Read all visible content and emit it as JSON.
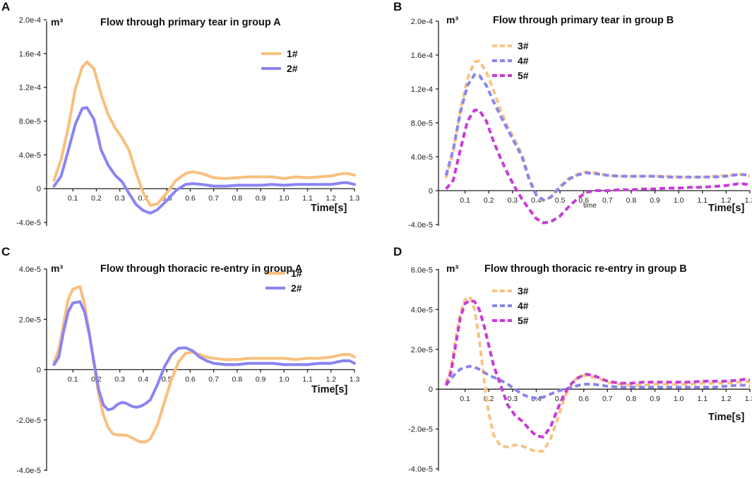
{
  "colors": {
    "s1": "#f9bf7d",
    "s2": "#8a84f2",
    "s3": "#f7c383",
    "s4": "#8a84ef",
    "s5": "#c73ad8",
    "axis": "#222222"
  },
  "chart_data": [
    {
      "panel": "A",
      "type": "line",
      "title": "Flow through primary tear in group A",
      "ylabel": "m³",
      "xlabel": "Time[s]",
      "ylim": [
        -5.5e-05,
        0.0002
      ],
      "xlim": [
        0,
        1.3
      ],
      "yticks": [
        -4e-05,
        0,
        4e-05,
        8e-05,
        0.00012,
        0.00016,
        0.0002
      ],
      "ytick_labels": [
        "-4.0e-5",
        "0",
        "4.0e-5",
        "8.0e-5",
        "1.2e-4",
        "1.6e-4",
        "2.0e-4"
      ],
      "xticks": [
        "0.1",
        "0.2",
        "0.3",
        "0.4",
        "0.5",
        "0.6",
        "0.7",
        "0.8",
        "0.9",
        "1.0",
        "1.1",
        "1.2",
        "1.3"
      ],
      "legend_position": "top-right",
      "series": [
        {
          "name": "1#",
          "style": "solid",
          "color_key": "s1",
          "x": [
            0.02,
            0.05,
            0.08,
            0.11,
            0.14,
            0.16,
            0.19,
            0.22,
            0.25,
            0.28,
            0.31,
            0.34,
            0.37,
            0.4,
            0.43,
            0.46,
            0.5,
            0.54,
            0.58,
            0.61,
            0.65,
            0.7,
            0.75,
            0.8,
            0.85,
            0.9,
            0.95,
            1.0,
            1.05,
            1.1,
            1.15,
            1.2,
            1.25,
            1.27,
            1.3
          ],
          "y": [
            1e-05,
            3.5e-05,
            7.2e-05,
            0.000118,
            0.000144,
            0.00015,
            0.000142,
            0.000112,
            8.8e-05,
            7.2e-05,
            6e-05,
            4.5e-05,
            1.8e-05,
            -5e-06,
            -2e-05,
            -1.8e-05,
            -5e-06,
            1e-05,
            1.8e-05,
            2e-05,
            1.8e-05,
            1.3e-05,
            1.2e-05,
            1.3e-05,
            1.4e-05,
            1.4e-05,
            1.4e-05,
            1.2e-05,
            1.4e-05,
            1.3e-05,
            1.4e-05,
            1.5e-05,
            1.8e-05,
            1.8e-05,
            1.6e-05
          ]
        },
        {
          "name": "2#",
          "style": "solid",
          "color_key": "s2",
          "x": [
            0.02,
            0.05,
            0.08,
            0.11,
            0.14,
            0.16,
            0.19,
            0.22,
            0.25,
            0.28,
            0.31,
            0.34,
            0.37,
            0.4,
            0.43,
            0.46,
            0.5,
            0.54,
            0.58,
            0.61,
            0.65,
            0.7,
            0.75,
            0.8,
            0.85,
            0.9,
            0.95,
            1.0,
            1.05,
            1.1,
            1.15,
            1.2,
            1.25,
            1.27,
            1.3
          ],
          "y": [
            3e-06,
            1.5e-05,
            4.5e-05,
            7.6e-05,
            9.5e-05,
            9.6e-05,
            8.2e-05,
            4.6e-05,
            2.8e-05,
            1.6e-05,
            8e-06,
            -6e-06,
            -1.9e-05,
            -2.6e-05,
            -2.9e-05,
            -2.5e-05,
            -1.4e-05,
            -2e-06,
            5e-06,
            6e-06,
            5e-06,
            3e-06,
            3e-06,
            4e-06,
            4e-06,
            4e-06,
            5e-06,
            4e-06,
            5e-06,
            5e-06,
            5e-06,
            5e-06,
            7e-06,
            7e-06,
            5e-06
          ]
        }
      ]
    },
    {
      "panel": "B",
      "type": "line",
      "title": "Flow through primary tear in group B",
      "ylabel": "m³",
      "xlabel": "Time[s]",
      "annotation": "time",
      "ylim": [
        -5.5e-05,
        0.0002
      ],
      "xlim": [
        0,
        1.3
      ],
      "yticks": [
        -4e-05,
        0,
        4e-05,
        8e-05,
        0.00012,
        0.00016,
        0.0002
      ],
      "ytick_labels": [
        "-4.0e-5",
        "0",
        "4.0e-5",
        "8.0e-5",
        "1.2e-4",
        "1.6e-4",
        "2.0e-4"
      ],
      "xticks": [
        "0.1",
        "0.2",
        "0.3",
        "0.4",
        "0.5",
        "0.6",
        "0.7",
        "0.8",
        "0.9",
        "1.0",
        "1.1",
        "1.2",
        "1.3"
      ],
      "legend_position": "top-right",
      "series": [
        {
          "name": "3#",
          "style": "dashed",
          "color_key": "s3",
          "x": [
            0.02,
            0.05,
            0.08,
            0.11,
            0.14,
            0.16,
            0.19,
            0.22,
            0.25,
            0.28,
            0.31,
            0.34,
            0.37,
            0.4,
            0.43,
            0.46,
            0.5,
            0.54,
            0.58,
            0.61,
            0.65,
            0.7,
            0.75,
            0.8,
            0.85,
            0.9,
            0.95,
            1.0,
            1.05,
            1.1,
            1.15,
            1.2,
            1.25,
            1.27,
            1.3
          ],
          "y": [
            1.5e-05,
            4.5e-05,
            9.5e-05,
            0.000132,
            0.000152,
            0.000153,
            0.00014,
            0.000118,
            9.5e-05,
            7.5e-05,
            6e-05,
            4.3e-05,
            1.5e-05,
            -6e-06,
            -1.2e-05,
            -8e-06,
            5e-06,
            1.5e-05,
            2e-05,
            2.2e-05,
            2.1e-05,
            1.8e-05,
            1.7e-05,
            1.7e-05,
            1.7e-05,
            1.7e-05,
            1.7e-05,
            1.6e-05,
            1.6e-05,
            1.6e-05,
            1.7e-05,
            1.8e-05,
            1.9e-05,
            1.9e-05,
            1.7e-05
          ]
        },
        {
          "name": "4#",
          "style": "dashed",
          "color_key": "s4",
          "x": [
            0.02,
            0.05,
            0.08,
            0.11,
            0.14,
            0.16,
            0.19,
            0.22,
            0.25,
            0.28,
            0.31,
            0.34,
            0.37,
            0.4,
            0.43,
            0.46,
            0.5,
            0.54,
            0.58,
            0.61,
            0.65,
            0.7,
            0.75,
            0.8,
            0.85,
            0.9,
            0.95,
            1.0,
            1.05,
            1.1,
            1.15,
            1.2,
            1.25,
            1.27,
            1.3
          ],
          "y": [
            1.8e-05,
            4.8e-05,
            9.2e-05,
            0.000124,
            0.000137,
            0.000136,
            0.000124,
            0.000105,
            8.8e-05,
            7.2e-05,
            5.6e-05,
            4e-05,
            1.3e-05,
            -5e-06,
            -1.1e-05,
            -8e-06,
            4e-06,
            1.4e-05,
            1.9e-05,
            2.1e-05,
            2e-05,
            1.8e-05,
            1.7e-05,
            1.7e-05,
            1.7e-05,
            1.7e-05,
            1.6e-05,
            1.6e-05,
            1.6e-05,
            1.6e-05,
            1.6e-05,
            1.7e-05,
            1.9e-05,
            1.9e-05,
            1.8e-05
          ]
        },
        {
          "name": "5#",
          "style": "dashed",
          "color_key": "s5",
          "x": [
            0.02,
            0.05,
            0.08,
            0.11,
            0.14,
            0.16,
            0.19,
            0.22,
            0.25,
            0.28,
            0.31,
            0.34,
            0.37,
            0.4,
            0.43,
            0.46,
            0.5,
            0.54,
            0.58,
            0.61,
            0.65,
            0.7,
            0.75,
            0.8,
            0.85,
            0.9,
            0.95,
            1.0,
            1.05,
            1.1,
            1.15,
            1.2,
            1.25,
            1.27,
            1.3
          ],
          "y": [
            2e-06,
            1.2e-05,
            4.8e-05,
            8.2e-05,
            9.5e-05,
            9.5e-05,
            8.2e-05,
            5.8e-05,
            3.8e-05,
            2e-05,
            4e-06,
            -1e-05,
            -2.2e-05,
            -3.3e-05,
            -3.8e-05,
            -3.7e-05,
            -3e-05,
            -1.8e-05,
            -8e-06,
            -2e-06,
            0.0,
            0.0,
            1e-06,
            1e-06,
            2e-06,
            2e-06,
            3e-06,
            3e-06,
            4e-06,
            4e-06,
            5e-06,
            6e-06,
            8e-06,
            8e-06,
            7e-06
          ]
        }
      ]
    },
    {
      "panel": "C",
      "type": "line",
      "title": "Flow through thoracic re-entry in group A",
      "ylabel": "m³",
      "xlabel": "Time[s]",
      "ylim": [
        -4e-05,
        4e-05
      ],
      "xlim": [
        0,
        1.3
      ],
      "yticks": [
        -4e-05,
        -2e-05,
        0,
        2e-05,
        4e-05
      ],
      "ytick_labels": [
        "-4.0e-5",
        "-2.0e-5",
        "0",
        "2.0e-5",
        "4.0e-5"
      ],
      "xticks": [
        "0.1",
        "0.2",
        "0.3",
        "0.4",
        "0.5",
        "0.6",
        "0.7",
        "0.8",
        "0.9",
        "1.0",
        "1.1",
        "1.2",
        "1.3"
      ],
      "legend_position": "top-right",
      "series": [
        {
          "name": "1#",
          "style": "solid",
          "color_key": "s1",
          "x": [
            0.02,
            0.04,
            0.06,
            0.08,
            0.1,
            0.13,
            0.15,
            0.17,
            0.19,
            0.21,
            0.23,
            0.25,
            0.27,
            0.29,
            0.31,
            0.33,
            0.35,
            0.37,
            0.39,
            0.41,
            0.43,
            0.46,
            0.49,
            0.52,
            0.55,
            0.58,
            0.61,
            0.64,
            0.67,
            0.7,
            0.75,
            0.8,
            0.85,
            0.9,
            0.95,
            1.0,
            1.05,
            1.1,
            1.15,
            1.2,
            1.25,
            1.28,
            1.3
          ],
          "y": [
            3e-06,
            8e-06,
            1.8e-05,
            2.8e-05,
            3.2e-05,
            3.3e-05,
            2.6e-05,
            1.5e-05,
            2e-06,
            -1e-05,
            -1.8e-05,
            -2.3e-05,
            -2.55e-05,
            -2.6e-05,
            -2.6e-05,
            -2.62e-05,
            -2.7e-05,
            -2.8e-05,
            -2.88e-05,
            -2.88e-05,
            -2.75e-05,
            -2.2e-05,
            -1.3e-05,
            -4e-06,
            3e-06,
            6.5e-06,
            7e-06,
            6e-06,
            5e-06,
            4.5e-06,
            4e-06,
            4e-06,
            4.5e-06,
            4.5e-06,
            4.5e-06,
            4.5e-06,
            4e-06,
            4.5e-06,
            4.5e-06,
            5e-06,
            6e-06,
            6e-06,
            5e-06
          ]
        },
        {
          "name": "2#",
          "style": "solid",
          "color_key": "s2",
          "x": [
            0.02,
            0.04,
            0.06,
            0.08,
            0.1,
            0.13,
            0.15,
            0.17,
            0.19,
            0.21,
            0.23,
            0.25,
            0.27,
            0.29,
            0.31,
            0.33,
            0.35,
            0.37,
            0.39,
            0.41,
            0.43,
            0.46,
            0.49,
            0.52,
            0.55,
            0.58,
            0.61,
            0.64,
            0.67,
            0.7,
            0.75,
            0.8,
            0.85,
            0.9,
            0.95,
            1.0,
            1.05,
            1.1,
            1.15,
            1.2,
            1.25,
            1.28,
            1.3
          ],
          "y": [
            2e-06,
            5e-06,
            1.5e-05,
            2.3e-05,
            2.65e-05,
            2.7e-05,
            2.3e-05,
            1.4e-05,
            3e-06,
            -8e-06,
            -1.4e-05,
            -1.6e-05,
            -1.55e-05,
            -1.38e-05,
            -1.3e-05,
            -1.35e-05,
            -1.45e-05,
            -1.5e-05,
            -1.45e-05,
            -1.35e-05,
            -1.2e-05,
            -6e-06,
            1e-06,
            6e-06,
            8.5e-06,
            8.7e-06,
            7.5e-06,
            5e-06,
            3.5e-06,
            2.5e-06,
            2e-06,
            2e-06,
            2.5e-06,
            2.5e-06,
            2.5e-06,
            2e-06,
            2e-06,
            2e-06,
            2.5e-06,
            2.5e-06,
            3.5e-06,
            3.5e-06,
            2.5e-06
          ]
        }
      ]
    },
    {
      "panel": "D",
      "type": "line",
      "title": "Flow through thoracic re-entry in group B",
      "ylabel": "m³",
      "xlabel": "Time[s]",
      "ylim": [
        -4e-05,
        6e-05
      ],
      "xlim": [
        0,
        1.3
      ],
      "yticks": [
        -4e-05,
        -2e-05,
        0,
        2e-05,
        4e-05,
        6e-05
      ],
      "ytick_labels": [
        "-4.0e-5",
        "-2.0e-5",
        "0",
        "2.0e-5",
        "4.0e-5",
        "6.0e-5"
      ],
      "xticks": [
        "0.1",
        "0.2",
        "0.3",
        "0.4",
        "0.5",
        "0.6",
        "0.7",
        "0.8",
        "0.9",
        "1.0",
        "1.1",
        "1.2",
        "1.3"
      ],
      "legend_position": "top-right",
      "series": [
        {
          "name": "3#",
          "style": "dashed",
          "color_key": "s3",
          "x": [
            0.02,
            0.04,
            0.06,
            0.08,
            0.1,
            0.12,
            0.14,
            0.16,
            0.18,
            0.2,
            0.22,
            0.25,
            0.28,
            0.31,
            0.34,
            0.37,
            0.4,
            0.43,
            0.46,
            0.49,
            0.52,
            0.55,
            0.58,
            0.61,
            0.64,
            0.67,
            0.7,
            0.75,
            0.8,
            0.85,
            0.9,
            0.95,
            1.0,
            1.05,
            1.1,
            1.15,
            1.2,
            1.25,
            1.28,
            1.3
          ],
          "y": [
            3e-06,
            1e-05,
            2.5e-05,
            3.8e-05,
            4.5e-05,
            4.65e-05,
            4e-05,
            2.5e-05,
            5e-06,
            -1.2e-05,
            -2.3e-05,
            -2.85e-05,
            -2.9e-05,
            -2.8e-05,
            -2.85e-05,
            -3e-05,
            -3.15e-05,
            -3.1e-05,
            -2.5e-05,
            -1.5e-05,
            -4e-06,
            3e-06,
            6.5e-06,
            7e-06,
            6e-06,
            5e-06,
            3.5e-06,
            2.5e-06,
            2e-06,
            2e-06,
            2.5e-06,
            2.5e-06,
            2.5e-06,
            2.5e-06,
            3e-06,
            3e-06,
            3e-06,
            3.5e-06,
            4e-06,
            3.5e-06
          ]
        },
        {
          "name": "4#",
          "style": "dashed",
          "color_key": "s4",
          "x": [
            0.02,
            0.04,
            0.06,
            0.08,
            0.1,
            0.12,
            0.14,
            0.16,
            0.18,
            0.2,
            0.22,
            0.25,
            0.28,
            0.31,
            0.34,
            0.37,
            0.4,
            0.43,
            0.46,
            0.49,
            0.52,
            0.55,
            0.58,
            0.61,
            0.64,
            0.67,
            0.7,
            0.75,
            0.8,
            0.85,
            0.9,
            0.95,
            1.0,
            1.05,
            1.1,
            1.15,
            1.2,
            1.25,
            1.28,
            1.3
          ],
          "y": [
            2e-06,
            5e-06,
            8e-06,
            1e-05,
            1.1e-05,
            1.15e-05,
            1.1e-05,
            1e-05,
            8.5e-06,
            7e-06,
            6e-06,
            4.5e-06,
            2.5e-06,
            0.0,
            -2.5e-06,
            -4e-06,
            -4.5e-06,
            -4e-06,
            -2.5e-06,
            -1e-06,
            0.0,
            1e-06,
            2e-06,
            2.5e-06,
            2.5e-06,
            2e-06,
            1.5e-06,
            1e-06,
            1e-06,
            1e-06,
            1e-06,
            1e-06,
            1e-06,
            1e-06,
            1e-06,
            1e-06,
            1.5e-06,
            2e-06,
            2e-06,
            1.5e-06
          ]
        },
        {
          "name": "5#",
          "style": "dashed",
          "color_key": "s5",
          "x": [
            0.02,
            0.04,
            0.06,
            0.08,
            0.1,
            0.12,
            0.14,
            0.16,
            0.18,
            0.2,
            0.22,
            0.25,
            0.28,
            0.31,
            0.34,
            0.37,
            0.4,
            0.43,
            0.46,
            0.49,
            0.52,
            0.55,
            0.58,
            0.61,
            0.64,
            0.67,
            0.7,
            0.75,
            0.8,
            0.85,
            0.9,
            0.95,
            1.0,
            1.05,
            1.1,
            1.15,
            1.2,
            1.25,
            1.28,
            1.3
          ],
          "y": [
            2e-06,
            8e-06,
            2.2e-05,
            3.6e-05,
            4.3e-05,
            4.45e-05,
            4.4e-05,
            4e-05,
            3.2e-05,
            2.2e-05,
            1.2e-05,
            2e-06,
            -8e-06,
            -1.3e-05,
            -1.6e-05,
            -2e-05,
            -2.35e-05,
            -2.4e-05,
            -1.9e-05,
            -1e-05,
            -2e-06,
            3e-06,
            6e-06,
            7.5e-06,
            7e-06,
            5.5e-06,
            4e-06,
            3e-06,
            3e-06,
            3.5e-06,
            3.5e-06,
            3.5e-06,
            3.5e-06,
            3.5e-06,
            4e-06,
            4e-06,
            4e-06,
            4.5e-06,
            5e-06,
            4.5e-06
          ]
        }
      ]
    }
  ]
}
